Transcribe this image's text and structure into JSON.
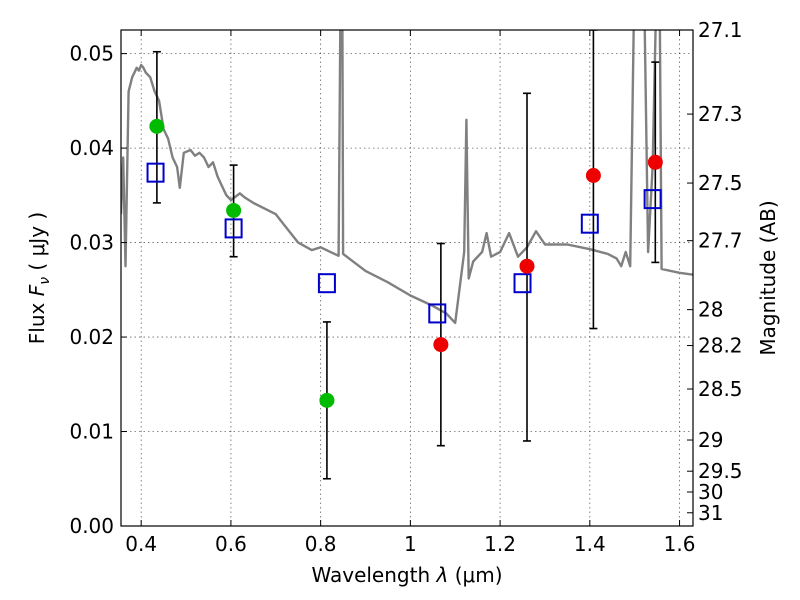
{
  "chart_data": {
    "type": "scatter",
    "xlabel": "Wavelength",
    "xlabel_symbol": "λ",
    "xlabel_unit": "(μm)",
    "ylabel": "Flux",
    "ylabel_symbol": "F",
    "ylabel_subscript": "ν",
    "ylabel_unit": "( μJy )",
    "y2label": "Magnitude (AB)",
    "xlim": [
      0.355,
      1.63
    ],
    "ylim": [
      0.0,
      0.0525
    ],
    "grid": true,
    "x_ticks": [
      {
        "value": 0.4,
        "label": "0.4"
      },
      {
        "value": 0.6,
        "label": "0.6"
      },
      {
        "value": 0.8,
        "label": "0.8"
      },
      {
        "value": 1.0,
        "label": "1"
      },
      {
        "value": 1.2,
        "label": "1.2"
      },
      {
        "value": 1.4,
        "label": "1.4"
      },
      {
        "value": 1.6,
        "label": "1.6"
      }
    ],
    "y_ticks": [
      {
        "value": 0.0,
        "label": "0.00"
      },
      {
        "value": 0.01,
        "label": "0.01"
      },
      {
        "value": 0.02,
        "label": "0.02"
      },
      {
        "value": 0.03,
        "label": "0.03"
      },
      {
        "value": 0.04,
        "label": "0.04"
      },
      {
        "value": 0.05,
        "label": "0.05"
      }
    ],
    "y2_ticks": [
      {
        "label": "27.1",
        "flux": 0.0525
      },
      {
        "label": "27.3",
        "flux": 0.0436
      },
      {
        "label": "27.5",
        "flux": 0.0363
      },
      {
        "label": "27.7",
        "flux": 0.0302
      },
      {
        "label": "28",
        "flux": 0.0229
      },
      {
        "label": "28.2",
        "flux": 0.0191
      },
      {
        "label": "28.5",
        "flux": 0.0145
      },
      {
        "label": "29",
        "flux": 0.0091
      },
      {
        "label": "29.5",
        "flux": 0.0058
      },
      {
        "label": "30",
        "flux": 0.0036
      },
      {
        "label": "31",
        "flux": 0.0014
      }
    ],
    "series": [
      {
        "name": "observed (green)",
        "marker": "circle",
        "color": "#00bb00",
        "points": [
          {
            "x": 0.435,
            "y": 0.0423,
            "yerr_low": 0.0342,
            "yerr_high": 0.0502
          },
          {
            "x": 0.606,
            "y": 0.0334,
            "yerr_low": 0.0285,
            "yerr_high": 0.0382
          },
          {
            "x": 0.814,
            "y": 0.0133,
            "yerr_low": 0.005,
            "yerr_high": 0.0216
          }
        ]
      },
      {
        "name": "observed (red)",
        "marker": "circle",
        "color": "#ee0000",
        "points": [
          {
            "x": 1.068,
            "y": 0.0192,
            "yerr_low": 0.0085,
            "yerr_high": 0.0299
          },
          {
            "x": 1.26,
            "y": 0.0275,
            "yerr_low": 0.009,
            "yerr_high": 0.0458
          },
          {
            "x": 1.408,
            "y": 0.0371,
            "yerr_low": 0.0209,
            "yerr_high": 0.0525
          },
          {
            "x": 1.546,
            "y": 0.0385,
            "yerr_low": 0.0279,
            "yerr_high": 0.0491
          }
        ]
      },
      {
        "name": "model photometry",
        "marker": "square",
        "color": "#0000cc",
        "points": [
          {
            "x": 0.432,
            "y": 0.0374
          },
          {
            "x": 0.606,
            "y": 0.0315
          },
          {
            "x": 0.814,
            "y": 0.0257
          },
          {
            "x": 1.06,
            "y": 0.0225
          },
          {
            "x": 1.25,
            "y": 0.0257
          },
          {
            "x": 1.4,
            "y": 0.032
          },
          {
            "x": 1.54,
            "y": 0.0346
          }
        ]
      },
      {
        "name": "model SED",
        "marker": "line",
        "color": "#808080",
        "points": [
          {
            "x": 0.355,
            "y": 0.033
          },
          {
            "x": 0.36,
            "y": 0.039
          },
          {
            "x": 0.365,
            "y": 0.0275
          },
          {
            "x": 0.372,
            "y": 0.046
          },
          {
            "x": 0.38,
            "y": 0.0475
          },
          {
            "x": 0.39,
            "y": 0.0485
          },
          {
            "x": 0.395,
            "y": 0.0482
          },
          {
            "x": 0.4,
            "y": 0.0488
          },
          {
            "x": 0.405,
            "y": 0.0485
          },
          {
            "x": 0.41,
            "y": 0.048
          },
          {
            "x": 0.42,
            "y": 0.0475
          },
          {
            "x": 0.43,
            "y": 0.046
          },
          {
            "x": 0.44,
            "y": 0.045
          },
          {
            "x": 0.45,
            "y": 0.042
          },
          {
            "x": 0.46,
            "y": 0.041
          },
          {
            "x": 0.47,
            "y": 0.039
          },
          {
            "x": 0.48,
            "y": 0.038
          },
          {
            "x": 0.486,
            "y": 0.0358
          },
          {
            "x": 0.495,
            "y": 0.0395
          },
          {
            "x": 0.51,
            "y": 0.0398
          },
          {
            "x": 0.52,
            "y": 0.0392
          },
          {
            "x": 0.53,
            "y": 0.0395
          },
          {
            "x": 0.54,
            "y": 0.039
          },
          {
            "x": 0.55,
            "y": 0.038
          },
          {
            "x": 0.56,
            "y": 0.0385
          },
          {
            "x": 0.57,
            "y": 0.037
          },
          {
            "x": 0.58,
            "y": 0.036
          },
          {
            "x": 0.59,
            "y": 0.035
          },
          {
            "x": 0.6,
            "y": 0.0345
          },
          {
            "x": 0.62,
            "y": 0.0352
          },
          {
            "x": 0.63,
            "y": 0.0348
          },
          {
            "x": 0.65,
            "y": 0.0342
          },
          {
            "x": 0.7,
            "y": 0.033
          },
          {
            "x": 0.72,
            "y": 0.0318
          },
          {
            "x": 0.75,
            "y": 0.03
          },
          {
            "x": 0.78,
            "y": 0.0292
          },
          {
            "x": 0.8,
            "y": 0.0295
          },
          {
            "x": 0.84,
            "y": 0.0286
          },
          {
            "x": 0.845,
            "y": 0.06
          },
          {
            "x": 0.848,
            "y": 0.06
          },
          {
            "x": 0.85,
            "y": 0.0288
          },
          {
            "x": 0.9,
            "y": 0.027
          },
          {
            "x": 0.95,
            "y": 0.0258
          },
          {
            "x": 1.0,
            "y": 0.0244
          },
          {
            "x": 1.05,
            "y": 0.0233
          },
          {
            "x": 1.08,
            "y": 0.0225
          },
          {
            "x": 1.1,
            "y": 0.0215
          },
          {
            "x": 1.12,
            "y": 0.029
          },
          {
            "x": 1.125,
            "y": 0.043
          },
          {
            "x": 1.13,
            "y": 0.0262
          },
          {
            "x": 1.14,
            "y": 0.028
          },
          {
            "x": 1.16,
            "y": 0.029
          },
          {
            "x": 1.17,
            "y": 0.031
          },
          {
            "x": 1.18,
            "y": 0.0285
          },
          {
            "x": 1.2,
            "y": 0.029
          },
          {
            "x": 1.22,
            "y": 0.031
          },
          {
            "x": 1.24,
            "y": 0.0285
          },
          {
            "x": 1.26,
            "y": 0.0295
          },
          {
            "x": 1.28,
            "y": 0.0312
          },
          {
            "x": 1.3,
            "y": 0.0298
          },
          {
            "x": 1.35,
            "y": 0.0298
          },
          {
            "x": 1.4,
            "y": 0.0293
          },
          {
            "x": 1.44,
            "y": 0.0288
          },
          {
            "x": 1.46,
            "y": 0.0283
          },
          {
            "x": 1.47,
            "y": 0.0275
          },
          {
            "x": 1.48,
            "y": 0.029
          },
          {
            "x": 1.49,
            "y": 0.0275
          },
          {
            "x": 1.5,
            "y": 0.06
          },
          {
            "x": 1.52,
            "y": 0.06
          },
          {
            "x": 1.53,
            "y": 0.029
          },
          {
            "x": 1.54,
            "y": 0.038
          },
          {
            "x": 1.55,
            "y": 0.06
          },
          {
            "x": 1.555,
            "y": 0.06
          },
          {
            "x": 1.56,
            "y": 0.0272
          },
          {
            "x": 1.6,
            "y": 0.0268
          },
          {
            "x": 1.63,
            "y": 0.0266
          }
        ]
      }
    ]
  }
}
